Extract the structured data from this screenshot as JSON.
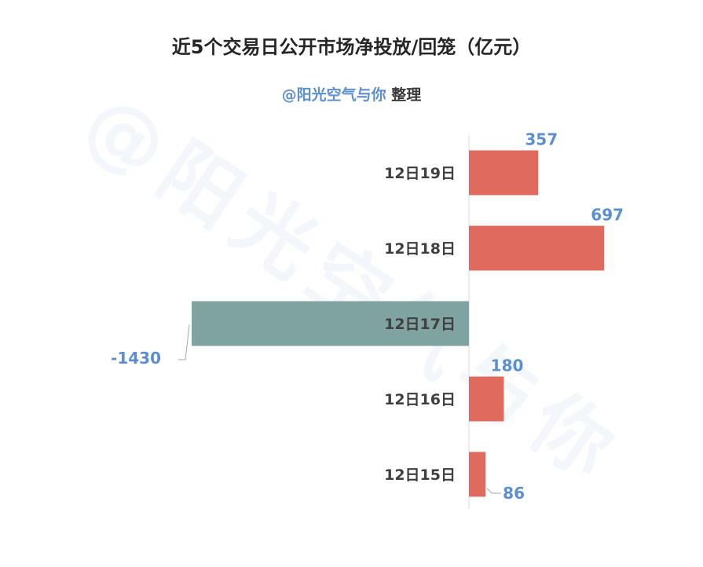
{
  "title": "近5个交易日公开市场净投放/回笼（亿元）",
  "subtitle": {
    "credit": "@阳光空气与你",
    "suffix": " 整理"
  },
  "watermark": "@阳光空气与你",
  "colors": {
    "positive": "#E06A5E",
    "negative": "#7FA3A0",
    "label": "#5B8FD0",
    "axis": "#d9d9d9"
  },
  "chart_data": {
    "type": "bar",
    "orientation": "horizontal",
    "title": "近5个交易日公开市场净投放/回笼（亿元）",
    "categories": [
      "12日19日",
      "12日18日",
      "12日17日",
      "12日16日",
      "12日15日"
    ],
    "values": [
      357,
      697,
      -1430,
      180,
      86
    ],
    "data_labels": [
      "357",
      "697",
      "-1430",
      "180",
      "86"
    ],
    "xlim": [
      -1430,
      697
    ],
    "grid": false,
    "legend": "none"
  }
}
